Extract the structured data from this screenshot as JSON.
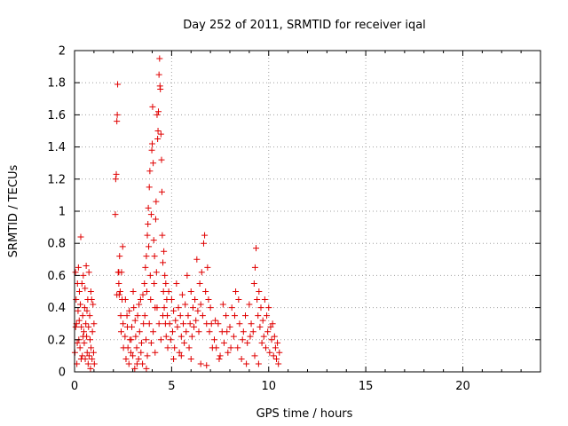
{
  "chart_data": {
    "type": "scatter",
    "title": "Day 252 of 2011, SRMTID for receiver iqal",
    "xlabel": "GPS time / hours",
    "ylabel": "SRMTID / TECUs",
    "xlim": [
      0,
      24
    ],
    "ylim": [
      0,
      2
    ],
    "grid": true,
    "marker": "+",
    "color": "#e00000",
    "x_ticks": [
      0,
      5,
      10,
      15,
      20
    ],
    "y_ticks": [
      0,
      0.2,
      0.4,
      0.6,
      0.8,
      1,
      1.2,
      1.4,
      1.6,
      1.8,
      2
    ],
    "x_tick_labels": [
      "0",
      "5",
      "10",
      "15",
      "20"
    ],
    "y_tick_labels": [
      "0",
      "0.2",
      "0.4",
      "0.6",
      "0.8",
      "1",
      "1.2",
      "1.4",
      "1.6",
      "1.8",
      "2"
    ],
    "points": [
      [
        0.02,
        0.12
      ],
      [
        0.05,
        0.62
      ],
      [
        0.08,
        0.45
      ],
      [
        0.1,
        0.3
      ],
      [
        0.12,
        0.05
      ],
      [
        0.15,
        0.55
      ],
      [
        0.18,
        0.38
      ],
      [
        0.2,
        0.65
      ],
      [
        0.22,
        0.2
      ],
      [
        0.25,
        0.5
      ],
      [
        0.28,
        0.15
      ],
      [
        0.3,
        0.42
      ],
      [
        0.32,
        0.84
      ],
      [
        0.35,
        0.28
      ],
      [
        0.38,
        0.55
      ],
      [
        0.4,
        0.1
      ],
      [
        0.42,
        0.35
      ],
      [
        0.45,
        0.6
      ],
      [
        0.48,
        0.25
      ],
      [
        0.5,
        0.18
      ],
      [
        0.52,
        0.4
      ],
      [
        0.55,
        0.08
      ],
      [
        0.58,
        0.3
      ],
      [
        0.6,
        0.66
      ],
      [
        0.62,
        0.22
      ],
      [
        0.65,
        0.12
      ],
      [
        0.68,
        0.45
      ],
      [
        0.7,
        0.05
      ],
      [
        0.72,
        0.28
      ],
      [
        0.75,
        0.1
      ],
      [
        0.78,
        0.35
      ],
      [
        0.8,
        0.2
      ],
      [
        0.82,
        0.02
      ],
      [
        0.85,
        0.15
      ],
      [
        0.88,
        0.45
      ],
      [
        0.9,
        0.08
      ],
      [
        0.92,
        0.25
      ],
      [
        0.95,
        0.42
      ],
      [
        0.98,
        0.12
      ],
      [
        1.0,
        0.3
      ],
      [
        1.02,
        0.05
      ],
      [
        0.06,
        0.28
      ],
      [
        0.14,
        0.18
      ],
      [
        0.24,
        0.32
      ],
      [
        0.34,
        0.08
      ],
      [
        0.44,
        0.22
      ],
      [
        0.54,
        0.52
      ],
      [
        0.64,
        0.38
      ],
      [
        0.74,
        0.62
      ],
      [
        0.84,
        0.5
      ],
      [
        2.1,
        0.98
      ],
      [
        2.12,
        1.2
      ],
      [
        2.15,
        1.23
      ],
      [
        2.18,
        1.56
      ],
      [
        2.2,
        1.6
      ],
      [
        2.22,
        1.79
      ],
      [
        2.25,
        0.62
      ],
      [
        2.28,
        0.55
      ],
      [
        2.3,
        0.48
      ],
      [
        2.32,
        0.72
      ],
      [
        2.35,
        0.5
      ],
      [
        2.38,
        0.35
      ],
      [
        2.4,
        0.25
      ],
      [
        2.42,
        0.62
      ],
      [
        2.45,
        0.45
      ],
      [
        2.48,
        0.78
      ],
      [
        2.5,
        0.3
      ],
      [
        2.52,
        0.15
      ],
      [
        2.18,
        0.48
      ],
      [
        2.28,
        0.62
      ],
      [
        2.6,
        0.22
      ],
      [
        2.65,
        0.08
      ],
      [
        2.7,
        0.35
      ],
      [
        2.75,
        0.15
      ],
      [
        2.8,
        0.05
      ],
      [
        2.85,
        0.2
      ],
      [
        2.9,
        0.12
      ],
      [
        2.95,
        0.28
      ],
      [
        3.0,
        0.1
      ],
      [
        3.05,
        0.4
      ],
      [
        3.1,
        0.02
      ],
      [
        3.15,
        0.22
      ],
      [
        3.2,
        0.15
      ],
      [
        3.25,
        0.35
      ],
      [
        3.3,
        0.08
      ],
      [
        3.35,
        0.25
      ],
      [
        3.4,
        0.45
      ],
      [
        3.45,
        0.18
      ],
      [
        3.5,
        0.05
      ],
      [
        3.55,
        0.3
      ],
      [
        2.62,
        0.45
      ],
      [
        2.72,
        0.28
      ],
      [
        2.82,
        0.38
      ],
      [
        2.92,
        0.2
      ],
      [
        3.02,
        0.5
      ],
      [
        3.12,
        0.32
      ],
      [
        3.22,
        0.05
      ],
      [
        3.32,
        0.42
      ],
      [
        3.42,
        0.12
      ],
      [
        3.52,
        0.48
      ],
      [
        3.6,
        0.55
      ],
      [
        3.62,
        0.35
      ],
      [
        3.65,
        0.65
      ],
      [
        3.68,
        0.2
      ],
      [
        3.7,
        0.72
      ],
      [
        3.72,
        0.5
      ],
      [
        3.75,
        0.85
      ],
      [
        3.78,
        0.92
      ],
      [
        3.8,
        1.02
      ],
      [
        3.82,
        0.78
      ],
      [
        3.85,
        1.15
      ],
      [
        3.88,
        1.25
      ],
      [
        3.9,
        0.6
      ],
      [
        3.92,
        0.45
      ],
      [
        3.95,
        0.98
      ],
      [
        3.98,
        1.38
      ],
      [
        4.0,
        1.42
      ],
      [
        4.02,
        1.65
      ],
      [
        4.05,
        1.3
      ],
      [
        4.08,
        0.82
      ],
      [
        4.1,
        0.55
      ],
      [
        4.12,
        0.72
      ],
      [
        4.15,
        0.4
      ],
      [
        4.18,
        0.95
      ],
      [
        4.2,
        1.06
      ],
      [
        4.22,
        0.62
      ],
      [
        4.25,
        1.6
      ],
      [
        4.28,
        1.45
      ],
      [
        4.3,
        1.5
      ],
      [
        4.32,
        1.62
      ],
      [
        4.35,
        1.85
      ],
      [
        4.38,
        1.95
      ],
      [
        4.4,
        1.78
      ],
      [
        4.42,
        1.76
      ],
      [
        4.45,
        1.48
      ],
      [
        4.48,
        1.32
      ],
      [
        4.5,
        1.12
      ],
      [
        4.52,
        0.85
      ],
      [
        4.55,
        0.68
      ],
      [
        4.58,
        0.5
      ],
      [
        4.6,
        0.75
      ],
      [
        4.62,
        0.4
      ],
      [
        4.65,
        0.6
      ],
      [
        4.68,
        0.3
      ],
      [
        4.7,
        0.55
      ],
      [
        4.72,
        0.22
      ],
      [
        4.75,
        0.45
      ],
      [
        4.78,
        0.35
      ],
      [
        4.8,
        0.15
      ],
      [
        4.85,
        0.5
      ],
      [
        3.7,
        0.02
      ],
      [
        3.75,
        0.1
      ],
      [
        3.85,
        0.3
      ],
      [
        3.95,
        0.18
      ],
      [
        4.05,
        0.25
      ],
      [
        4.15,
        0.12
      ],
      [
        4.25,
        0.4
      ],
      [
        4.35,
        0.3
      ],
      [
        4.45,
        0.2
      ],
      [
        4.55,
        0.35
      ],
      [
        4.9,
        0.3
      ],
      [
        4.95,
        0.2
      ],
      [
        5.0,
        0.45
      ],
      [
        5.05,
        0.25
      ],
      [
        5.1,
        0.38
      ],
      [
        5.15,
        0.15
      ],
      [
        5.2,
        0.32
      ],
      [
        5.25,
        0.55
      ],
      [
        5.3,
        0.28
      ],
      [
        5.35,
        0.4
      ],
      [
        5.4,
        0.12
      ],
      [
        5.45,
        0.35
      ],
      [
        5.5,
        0.22
      ],
      [
        5.55,
        0.48
      ],
      [
        5.6,
        0.3
      ],
      [
        5.65,
        0.18
      ],
      [
        5.7,
        0.42
      ],
      [
        5.75,
        0.25
      ],
      [
        5.8,
        0.6
      ],
      [
        5.85,
        0.35
      ],
      [
        5.9,
        0.15
      ],
      [
        5.95,
        0.3
      ],
      [
        6.0,
        0.5
      ],
      [
        6.05,
        0.22
      ],
      [
        6.1,
        0.4
      ],
      [
        6.15,
        0.28
      ],
      [
        6.2,
        0.45
      ],
      [
        6.25,
        0.32
      ],
      [
        6.3,
        0.7
      ],
      [
        6.35,
        0.38
      ],
      [
        6.4,
        0.25
      ],
      [
        6.45,
        0.55
      ],
      [
        6.5,
        0.42
      ],
      [
        6.55,
        0.62
      ],
      [
        6.6,
        0.35
      ],
      [
        6.65,
        0.8
      ],
      [
        6.7,
        0.85
      ],
      [
        6.75,
        0.5
      ],
      [
        6.8,
        0.3
      ],
      [
        6.85,
        0.65
      ],
      [
        6.9,
        0.45
      ],
      [
        6.95,
        0.25
      ],
      [
        7.0,
        0.4
      ],
      [
        7.05,
        0.3
      ],
      [
        7.1,
        0.15
      ],
      [
        5.1,
        0.08
      ],
      [
        5.5,
        0.1
      ],
      [
        6.0,
        0.08
      ],
      [
        6.5,
        0.05
      ],
      [
        6.8,
        0.04
      ],
      [
        7.2,
        0.2
      ],
      [
        7.3,
        0.15
      ],
      [
        7.4,
        0.3
      ],
      [
        7.5,
        0.1
      ],
      [
        7.6,
        0.25
      ],
      [
        7.7,
        0.18
      ],
      [
        7.8,
        0.35
      ],
      [
        7.9,
        0.12
      ],
      [
        8.0,
        0.28
      ],
      [
        8.1,
        0.4
      ],
      [
        8.2,
        0.22
      ],
      [
        8.3,
        0.5
      ],
      [
        8.4,
        0.15
      ],
      [
        8.5,
        0.3
      ],
      [
        8.6,
        0.08
      ],
      [
        8.7,
        0.25
      ],
      [
        8.8,
        0.35
      ],
      [
        8.9,
        0.18
      ],
      [
        9.0,
        0.42
      ],
      [
        9.1,
        0.3
      ],
      [
        7.25,
        0.32
      ],
      [
        7.45,
        0.08
      ],
      [
        7.65,
        0.42
      ],
      [
        7.85,
        0.25
      ],
      [
        8.05,
        0.15
      ],
      [
        8.25,
        0.35
      ],
      [
        8.45,
        0.45
      ],
      [
        8.65,
        0.2
      ],
      [
        8.85,
        0.05
      ],
      [
        9.05,
        0.22
      ],
      [
        9.2,
        0.25
      ],
      [
        9.25,
        0.55
      ],
      [
        9.3,
        0.65
      ],
      [
        9.35,
        0.77
      ],
      [
        9.4,
        0.45
      ],
      [
        9.45,
        0.35
      ],
      [
        9.5,
        0.5
      ],
      [
        9.55,
        0.28
      ],
      [
        9.6,
        0.4
      ],
      [
        9.65,
        0.18
      ],
      [
        9.7,
        0.32
      ],
      [
        9.75,
        0.22
      ],
      [
        9.8,
        0.45
      ],
      [
        9.85,
        0.15
      ],
      [
        9.9,
        0.35
      ],
      [
        9.95,
        0.25
      ],
      [
        10.0,
        0.4
      ],
      [
        10.05,
        0.12
      ],
      [
        10.1,
        0.28
      ],
      [
        10.15,
        0.2
      ],
      [
        10.2,
        0.3
      ],
      [
        10.25,
        0.1
      ],
      [
        10.3,
        0.22
      ],
      [
        10.35,
        0.15
      ],
      [
        10.4,
        0.08
      ],
      [
        10.45,
        0.18
      ],
      [
        10.5,
        0.05
      ],
      [
        10.55,
        0.12
      ],
      [
        9.28,
        0.1
      ],
      [
        9.48,
        0.05
      ]
    ]
  }
}
